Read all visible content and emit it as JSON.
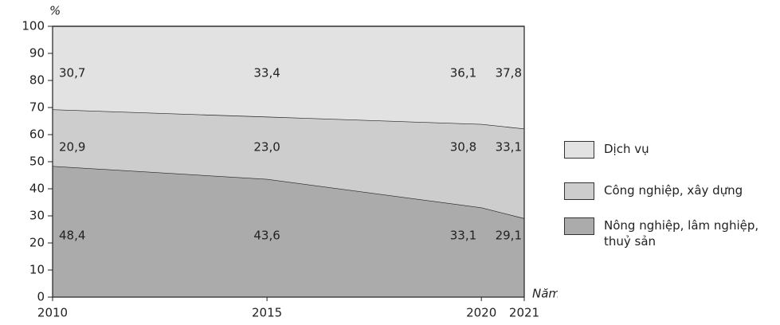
{
  "chart_data": {
    "type": "area",
    "y_label": "%",
    "x_label": "Năm",
    "x": [
      2010,
      2015,
      2020,
      2021
    ],
    "xlim": [
      2010,
      2021
    ],
    "xticks": [
      2010,
      2015,
      2020,
      2021
    ],
    "ylim": [
      0,
      100
    ],
    "yticks": [
      0,
      10,
      20,
      30,
      40,
      50,
      60,
      70,
      80,
      90,
      100
    ],
    "stacked": true,
    "series": [
      {
        "name": "Nông nghiệp, lâm nghiệp, thuỷ sản",
        "color": "#ababab",
        "values": [
          48.4,
          43.6,
          33.1,
          29.1
        ],
        "value_labels": [
          "48,4",
          "43,6",
          "33,1",
          "29,1"
        ]
      },
      {
        "name": "Công nghiệp, xây dựng",
        "color": "#cdcdcd",
        "values": [
          20.9,
          23.0,
          30.8,
          33.1
        ],
        "value_labels": [
          "20,9",
          "23,0",
          "30,8",
          "33,1"
        ]
      },
      {
        "name": "Dịch vụ",
        "color": "#e2e2e2",
        "values": [
          30.7,
          33.4,
          36.1,
          37.8
        ],
        "value_labels": [
          "30,7",
          "33,4",
          "36,1",
          "37,8"
        ]
      }
    ]
  }
}
